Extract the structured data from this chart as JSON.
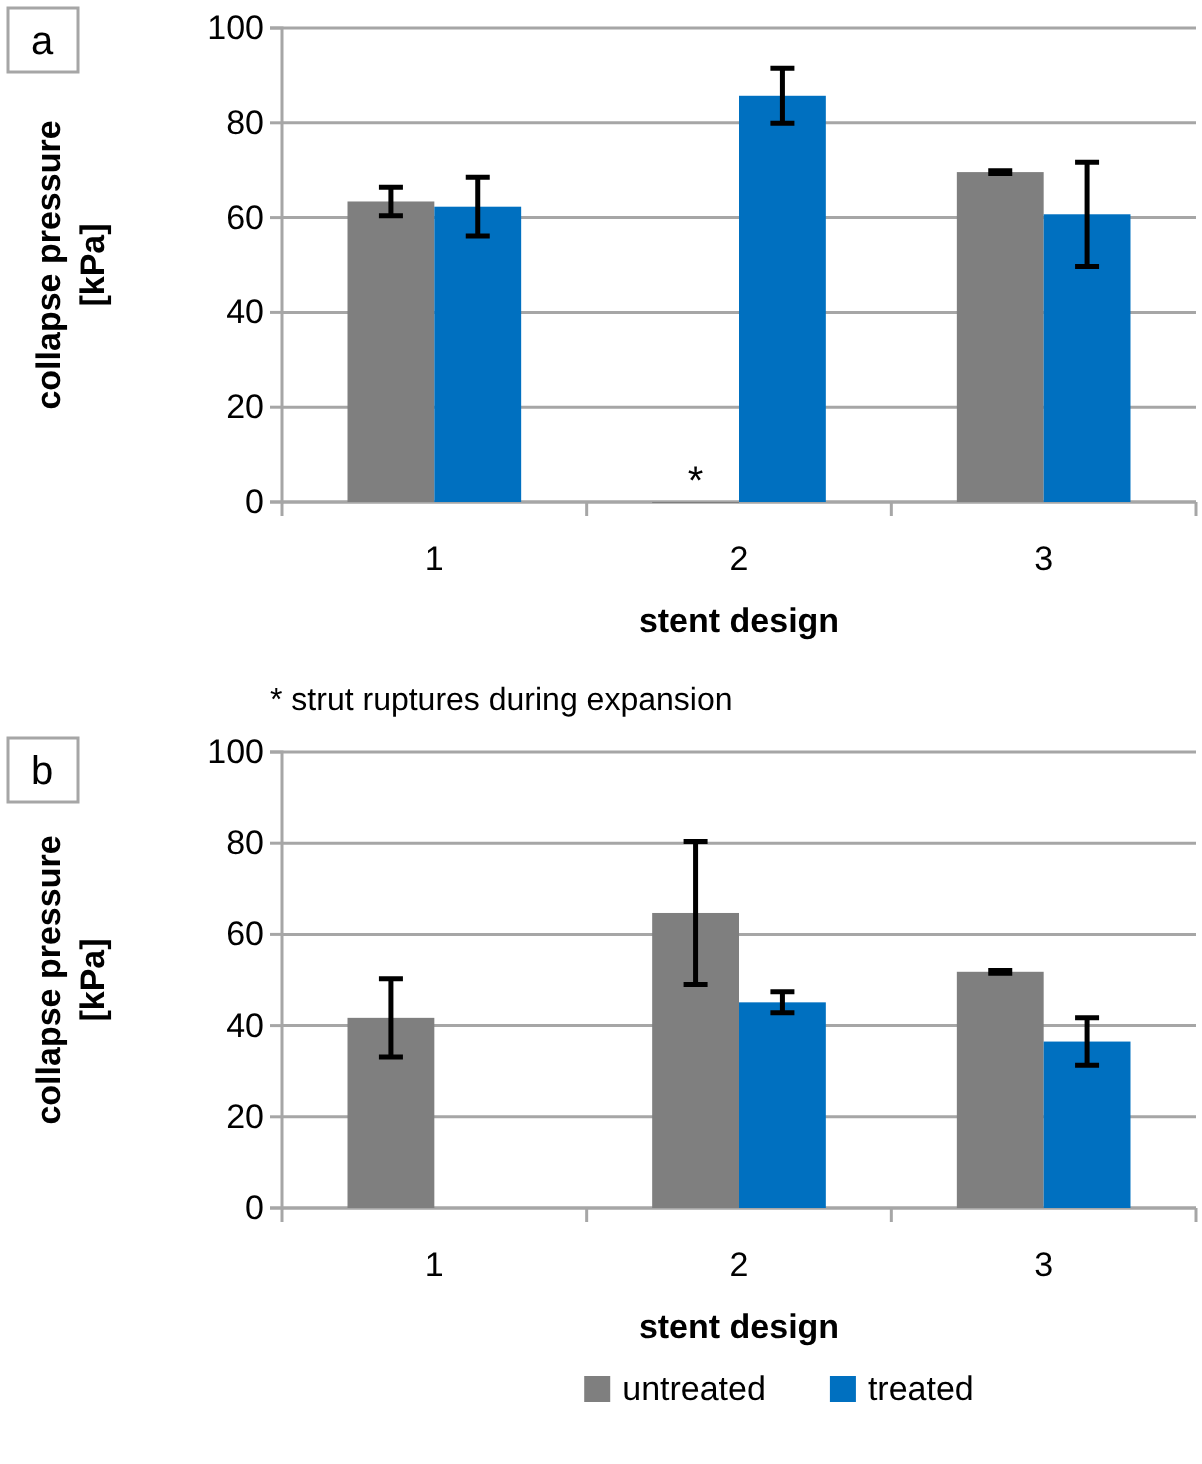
{
  "chart_data": [
    {
      "type": "bar",
      "title": "a",
      "categories": [
        "1",
        "2",
        "3"
      ],
      "xlabel": "stent design",
      "ylabel": "collapse pressure [kPa]",
      "ylim": [
        0,
        100
      ],
      "yticks": [
        0,
        20,
        40,
        60,
        80,
        100
      ],
      "grid": "y",
      "legend": false,
      "series": [
        {
          "color": "#7f7f7f",
          "values": [
            63.4,
            0,
            69.6
          ],
          "errors": [
            3,
            null,
            0.3
          ]
        },
        {
          "color": "#0070c0",
          "values": [
            62.3,
            85.7,
            60.7
          ],
          "errors": [
            6.2,
            5.8,
            11
          ]
        }
      ],
      "annotations": [
        {
          "text": "*",
          "x": "2",
          "y": 0
        },
        "* strut ruptures during expansion"
      ]
    },
    {
      "type": "bar",
      "title": "b",
      "categories": [
        "1",
        "2",
        "3"
      ],
      "xlabel": "stent design",
      "ylabel": "collapse pressure [kPa]",
      "ylim": [
        0,
        100
      ],
      "yticks": [
        0,
        20,
        40,
        60,
        80,
        100
      ],
      "grid": "y",
      "legend": "bottom",
      "series": [
        {
          "name": "untreated",
          "color": "#7f7f7f",
          "values": [
            41.7,
            64.7,
            51.8
          ],
          "errors": [
            8.6,
            15.7,
            0.3
          ]
        },
        {
          "name": "treated",
          "color": "#0070c0",
          "values": [
            null,
            45.1,
            36.5
          ],
          "errors": [
            null,
            2.3,
            5.2
          ]
        }
      ]
    }
  ]
}
